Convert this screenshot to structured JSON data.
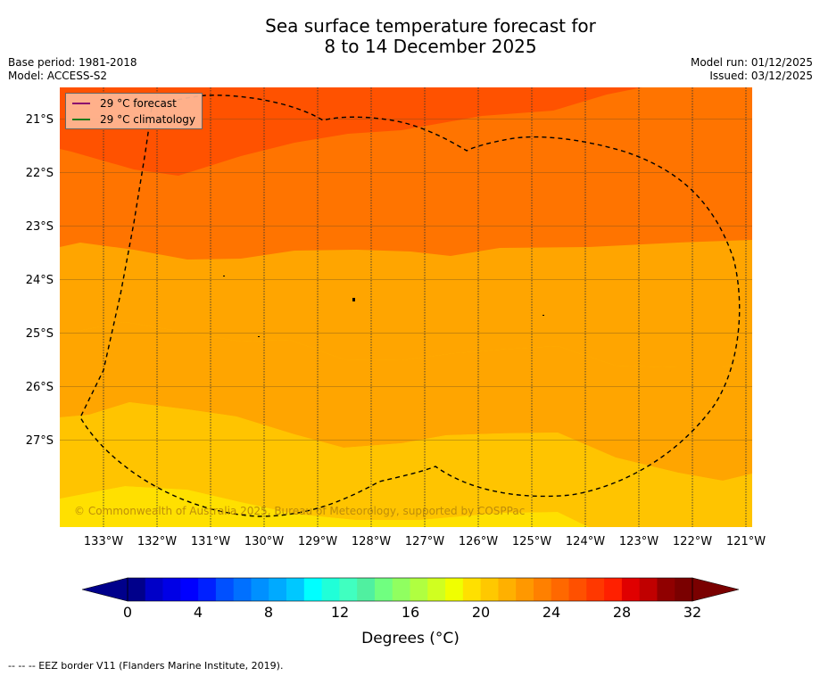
{
  "title": {
    "line1": "Sea surface temperature forecast for",
    "line2": "8 to 14 December 2025"
  },
  "meta_left": {
    "base_period": "Base period: 1981-2018",
    "model": "Model: ACCESS-S2"
  },
  "meta_right": {
    "model_run": "Model run: 01/12/2025",
    "issued": "Issued: 03/12/2025"
  },
  "legend": {
    "forecast_label": "29 °C  forecast",
    "climatology_label": "29 °C  climatology",
    "forecast_color": "#8b0a6e",
    "climatology_color": "#1a7a1a"
  },
  "map": {
    "lat_labels": [
      "21°S",
      "22°S",
      "23°S",
      "24°S",
      "25°S",
      "26°S",
      "27°S"
    ],
    "lon_labels": [
      "133°W",
      "132°W",
      "131°W",
      "130°W",
      "129°W",
      "128°W",
      "127°W",
      "126°W",
      "125°W",
      "124°W",
      "123°W",
      "122°W",
      "121°W"
    ],
    "copyright": "© Commonwealth of Australia 2025, Bureau of Meteorology, supported by COSPPac",
    "contour_band_colors": [
      "#ffe000",
      "#ffc400",
      "#ffa500",
      "#ff7400",
      "#ff5200"
    ]
  },
  "colorbar": {
    "tick_labels": [
      "0",
      "4",
      "8",
      "12",
      "16",
      "20",
      "24",
      "28",
      "32"
    ],
    "unit_label": "Degrees (°C)",
    "colors": [
      "#00008b",
      "#0000c8",
      "#0000e6",
      "#0000ff",
      "#0020ff",
      "#0050ff",
      "#0070ff",
      "#0090ff",
      "#00aaff",
      "#00c8ff",
      "#00ffff",
      "#20ffd8",
      "#40ffc0",
      "#50f0a0",
      "#70ff80",
      "#90ff60",
      "#b0ff40",
      "#d0ff20",
      "#f0ff00",
      "#ffe000",
      "#ffc800",
      "#ffb000",
      "#ff9800",
      "#ff8000",
      "#ff6800",
      "#ff5000",
      "#ff3800",
      "#ff2000",
      "#e00000",
      "#c00000",
      "#900000",
      "#7a0000"
    ]
  },
  "footnote": "--  --  -- EEZ border V11 (Flanders Marine Institute, 2019)."
}
